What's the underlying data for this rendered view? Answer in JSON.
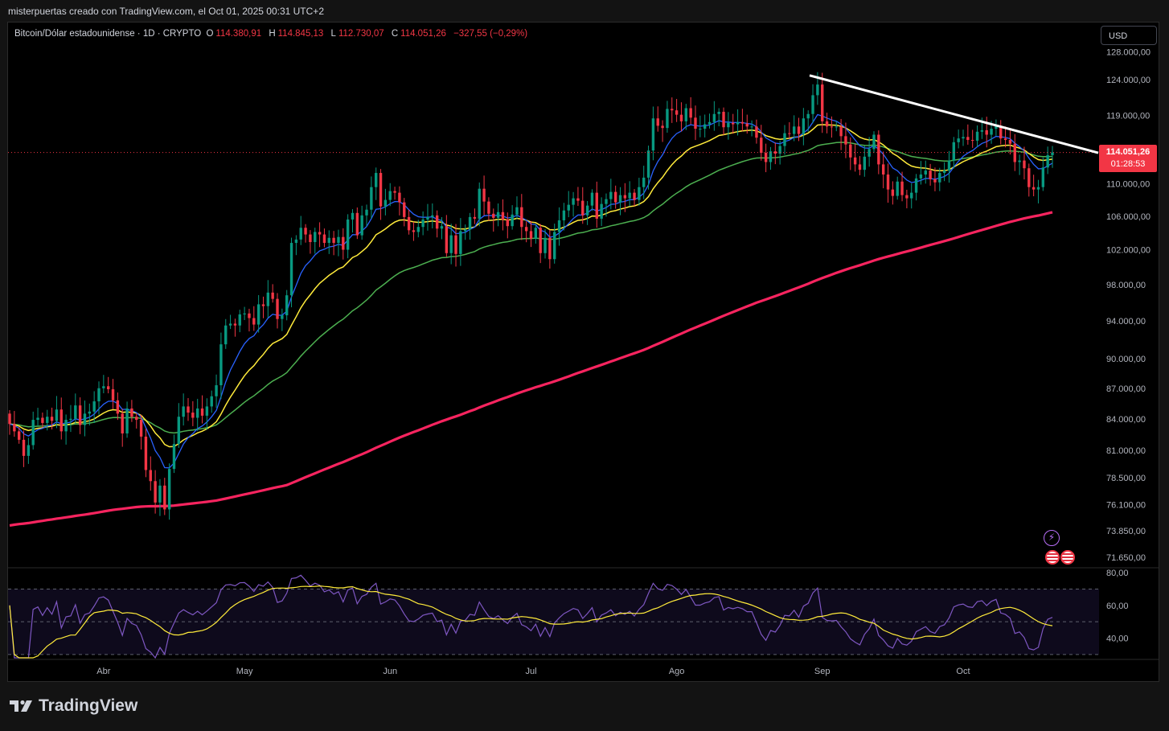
{
  "header": {
    "caption": "misterpuertas creado con TradingView.com, el Oct 01, 2025 00:31 UTC+2"
  },
  "symbol": {
    "name": "Bitcoin/Dólar estadounidense · 1D · CRYPTO",
    "o_label": "O",
    "o_value": "114.380,91",
    "h_label": "H",
    "h_value": "114.845,13",
    "l_label": "L",
    "l_value": "112.730,07",
    "c_label": "C",
    "c_value": "114.051,26",
    "change": "−327,55 (−0,29%)"
  },
  "currency_button": "USD",
  "price_tag": {
    "price": "114.051,26",
    "countdown": "01:28:53"
  },
  "footer": {
    "brand": "TradingView"
  },
  "icons": {
    "flash": "lightning-icon",
    "flags": "us-flag-icon"
  },
  "colors": {
    "up": "#089981",
    "down": "#f23645",
    "ma_blue": "#2962ff",
    "ma_yellow": "#ffeb3b",
    "ma_green": "#4caf50",
    "ma_pink": "#f7245f",
    "trendline": "#ffffff",
    "rsi": "#7e57c2",
    "rsi_ma": "#ffeb3b"
  },
  "chart_data": [
    {
      "type": "candlestick",
      "title": "Bitcoin/Dólar estadounidense · 1D · CRYPTO",
      "x_labels": [
        "Abr",
        "May",
        "Jun",
        "Jul",
        "Ago",
        "Sep",
        "Oct"
      ],
      "y_ticks": [
        "128.000,00",
        "124.000,00",
        "119.000,00",
        "114.051,26",
        "110.000,00",
        "106.000,00",
        "102.000,00",
        "98.000,00",
        "94.000,00",
        "90.000,00",
        "87.000,00",
        "84.000,00",
        "81.000,00",
        "78.500,00",
        "76.100,00",
        "73.850,00",
        "71.650,00"
      ],
      "y_tick_values": [
        128000,
        124000,
        119000,
        114051.26,
        110000,
        106000,
        102000,
        98000,
        94000,
        90000,
        87000,
        84000,
        81000,
        78500,
        76100,
        73850,
        71650
      ],
      "ylim": [
        71000,
        129000
      ],
      "scale": "log",
      "last_price": 114051.26,
      "closes": [
        83500,
        82800,
        82000,
        80500,
        81500,
        83900,
        84100,
        83600,
        84200,
        83800,
        84900,
        82800,
        83900,
        84000,
        85300,
        83400,
        84500,
        84700,
        85700,
        87000,
        87200,
        86900,
        85800,
        84500,
        82600,
        85000,
        84200,
        83900,
        82300,
        79200,
        78200,
        76300,
        77800,
        75700,
        79300,
        81600,
        84200,
        85200,
        84600,
        84100,
        85000,
        84300,
        85200,
        86200,
        87300,
        91500,
        93500,
        93700,
        93500,
        94700,
        94800,
        94300,
        93600,
        95800,
        95600,
        97100,
        96400,
        94200,
        94600,
        96800,
        102800,
        103200,
        104600,
        103800,
        102900,
        104100,
        103800,
        102800,
        103400,
        102800,
        103500,
        102000,
        105600,
        106400,
        103700,
        106100,
        106800,
        109600,
        111400,
        107200,
        108000,
        109100,
        108900,
        107700,
        105900,
        104300,
        104100,
        104700,
        105600,
        105900,
        106100,
        104500,
        104800,
        101600,
        103700,
        101500,
        104200,
        104400,
        105900,
        105700,
        109400,
        107800,
        106300,
        105800,
        106500,
        105600,
        104800,
        106200,
        107100,
        104700,
        104200,
        103300,
        104600,
        101600,
        103400,
        100900,
        104100,
        105500,
        106700,
        107400,
        108200,
        107900,
        106100,
        107300,
        108900,
        105700,
        107500,
        108100,
        109000,
        107700,
        108600,
        108200,
        108900,
        108000,
        109600,
        110800,
        114300,
        118600,
        117600,
        117300,
        119900,
        119700,
        119100,
        118200,
        120000,
        118700,
        117200,
        117200,
        117800,
        118100,
        119200,
        119500,
        117400,
        118000,
        117800,
        118100,
        117900,
        117500,
        117500,
        116000,
        114000,
        112800,
        114200,
        113900,
        114900,
        116600,
        116500,
        117500,
        116500,
        118600,
        119200,
        121800,
        123300,
        118200,
        117500,
        117400,
        117500,
        116200,
        115100,
        113400,
        112500,
        111800,
        113500,
        114500,
        116400,
        112500,
        111200,
        109300,
        108500,
        110300,
        108600,
        108200,
        108900,
        110700,
        111200,
        111700,
        110600,
        110200,
        111400,
        111700,
        113000,
        115400,
        115900,
        116100,
        115700,
        115600,
        116800,
        117000,
        116400,
        117200,
        117600,
        115900,
        115700,
        115200,
        112800,
        113000,
        112000,
        109600,
        109300,
        109600,
        112100,
        113700,
        114050
      ]
    },
    {
      "type": "line",
      "title": "RSI",
      "y_ticks": [
        "80,00",
        "60,00",
        "40,00"
      ],
      "y_tick_values": [
        80,
        60,
        40
      ],
      "ylim": [
        28,
        82
      ],
      "bands": [
        70,
        50,
        30
      ]
    }
  ]
}
